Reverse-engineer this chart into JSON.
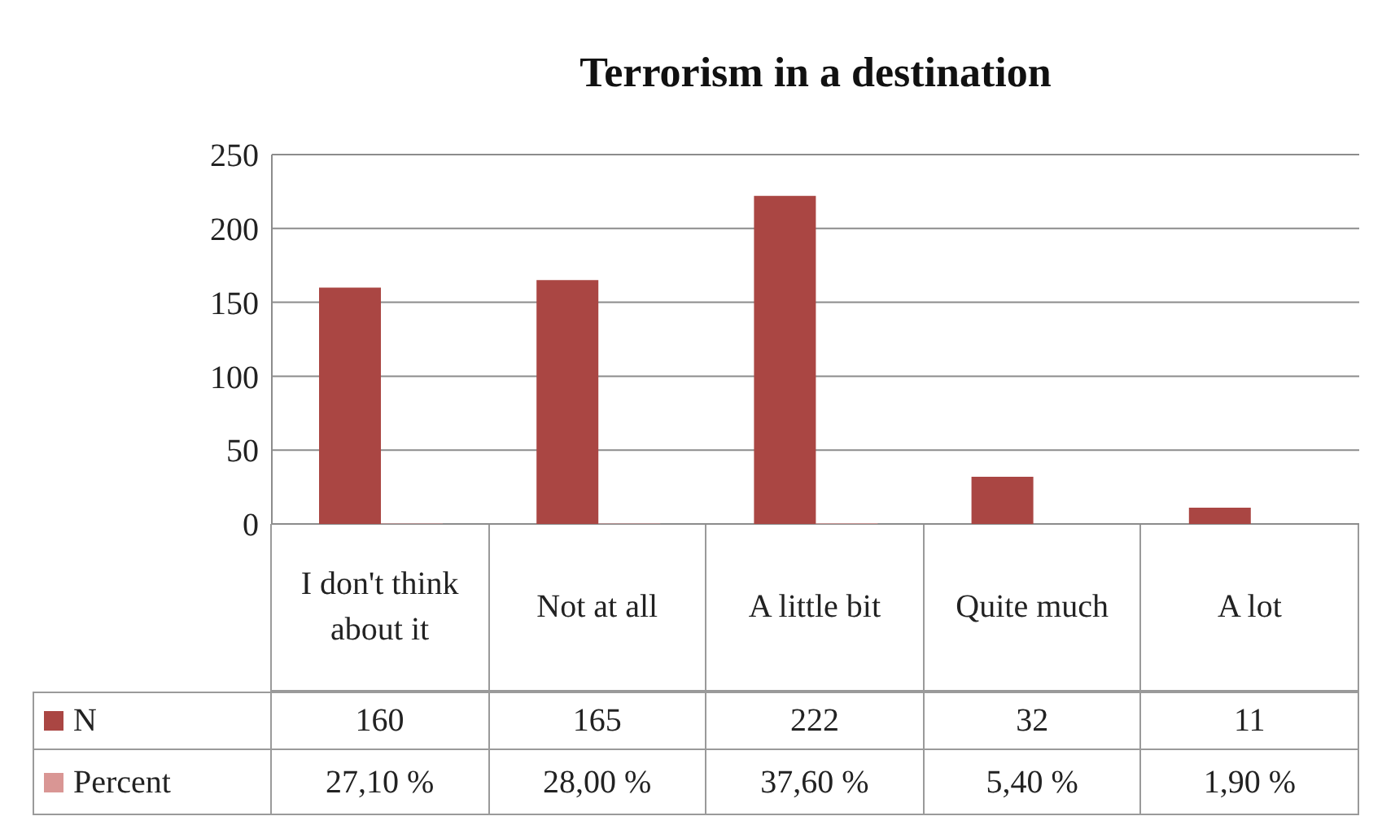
{
  "chart_data": {
    "type": "bar",
    "title": "Terrorism in a destination",
    "categories": [
      "I don't think about it",
      "Not at all",
      "A little bit",
      "Quite much",
      "A lot"
    ],
    "series": [
      {
        "name": "N",
        "color": "#aa4643",
        "values": [
          160,
          165,
          222,
          32,
          11
        ],
        "value_labels": [
          "160",
          "165",
          "222",
          "32",
          "11"
        ]
      },
      {
        "name": "Percent",
        "color": "#d99694",
        "values": [
          0.271,
          0.28,
          0.376,
          0.054,
          0.019
        ],
        "value_labels": [
          "27,10 %",
          "28,00 %",
          "37,60 %",
          "5,40 %",
          "1,90 %"
        ]
      }
    ],
    "ylim": [
      0,
      250
    ],
    "yticks": [
      0,
      50,
      100,
      150,
      200,
      250
    ],
    "grid": "y",
    "legend": "bottom"
  }
}
